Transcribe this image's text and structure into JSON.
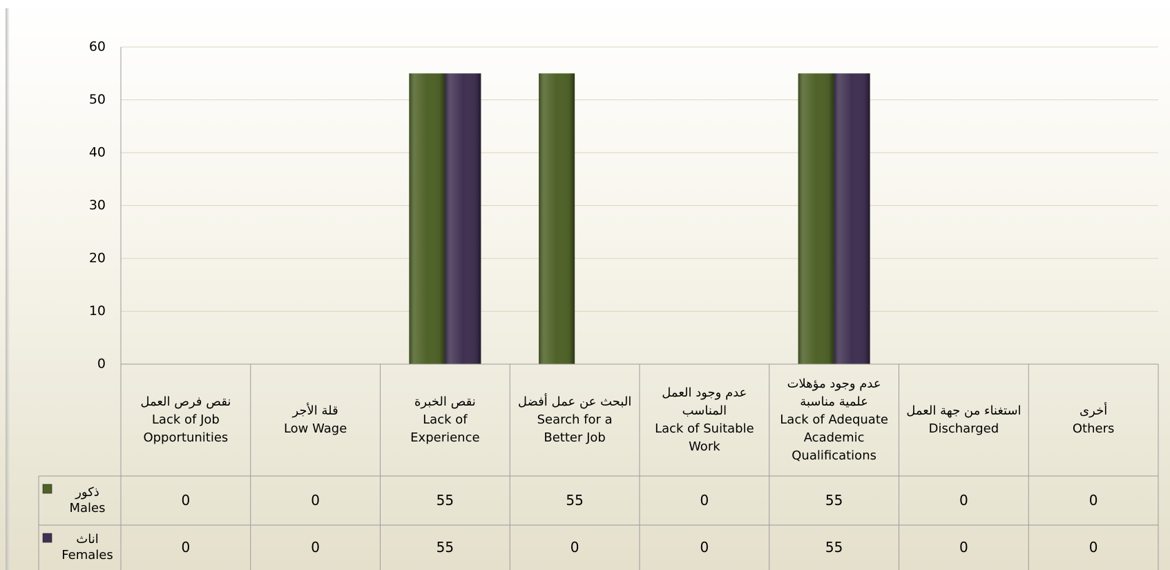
{
  "chart_data": {
    "type": "bar",
    "categories": [
      "نقص فرص العمل\nLack of Job\nOpportunities",
      "قلة الأجر\nLow Wage",
      "نقص الخبرة\nLack of\nExperience",
      "البحث عن عمل أفضل\nSearch for a\nBetter Job",
      "عدم وجود العمل\nالمناسب\nLack of Suitable\nWork",
      "عدم وجود مؤهلات\nعلمية مناسبة\nLack of Adequate\nAcademic\nQualifications",
      "استغناء من جهة العمل\nDischarged",
      "أخرى\nOthers"
    ],
    "series": [
      {
        "name": "ذكور\nMales",
        "color": "#4f6228",
        "values": [
          0,
          0,
          55,
          55,
          0,
          55,
          0,
          0
        ]
      },
      {
        "name": "اناث\nFemales",
        "color": "#403152",
        "values": [
          0,
          0,
          55,
          0,
          0,
          55,
          0,
          0
        ]
      }
    ],
    "ylim": [
      0,
      60
    ],
    "yticks": [
      0,
      10,
      20,
      30,
      40,
      50,
      60
    ],
    "grid": true
  }
}
